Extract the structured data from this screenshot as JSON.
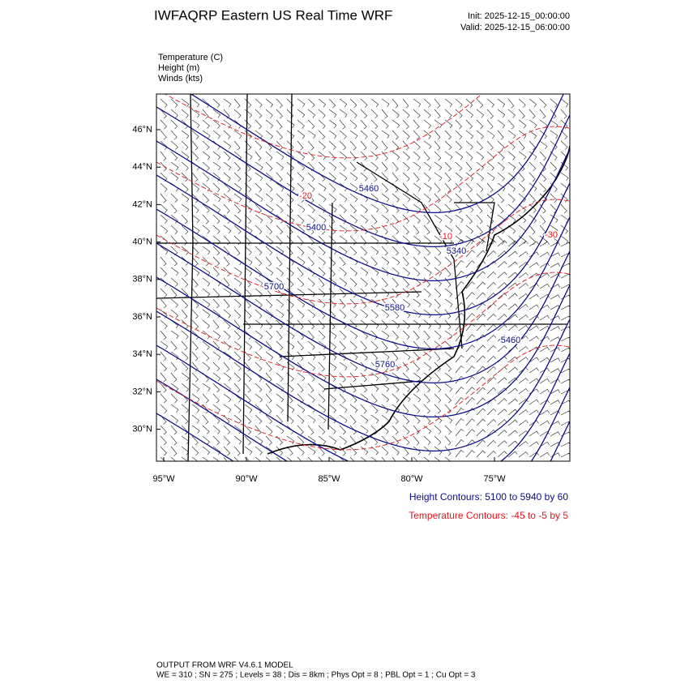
{
  "header": {
    "title": "IWFAQRP Eastern US Real Time WRF",
    "init": "Init: 2025-12-15_00:00:00",
    "valid": "Valid: 2025-12-15_06:00:00"
  },
  "fields": [
    "Temperature   (C)",
    "Height   (m)",
    "Winds   (kts)"
  ],
  "map": {
    "lat_labels": [
      "46°N",
      "44°N",
      "42°N",
      "40°N",
      "38°N",
      "36°N",
      "34°N",
      "32°N",
      "30°N"
    ],
    "lon_labels": [
      "95°W",
      "90°W",
      "85°W",
      "80°W",
      "75°W"
    ],
    "contour_labels": [
      "-20",
      "5460",
      "5400",
      "-10",
      "5340",
      "-30",
      "5700",
      "5580",
      "5460",
      "5760"
    ]
  },
  "legend": {
    "height": "Height Contours: 5100 to 5940 by 60",
    "temperature": "Temperature Contours: -45 to -5 by 5"
  },
  "footer": {
    "line1": "OUTPUT FROM WRF V4.6.1 MODEL",
    "line2": "WE = 310 ; SN = 275 ; Levels = 38 ; Dis = 8km ; Phys Opt = 8 ; PBL Opt = 1 ; Cu Opt = 3"
  }
}
